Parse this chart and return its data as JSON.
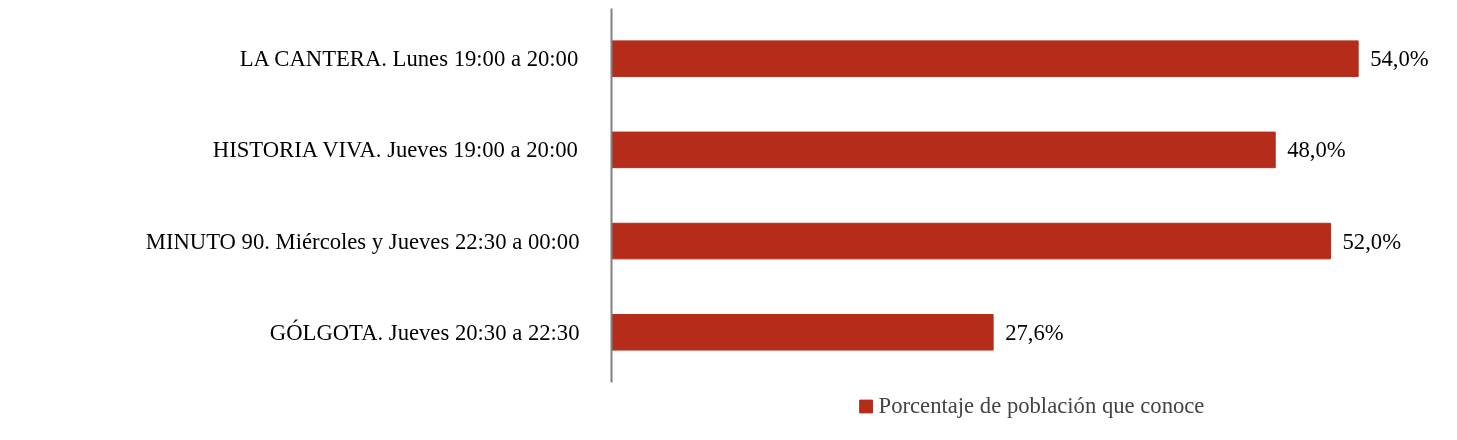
{
  "chart_data": {
    "type": "bar",
    "orientation": "horizontal",
    "categories": [
      "LA CANTERA. Lunes 19:00 a 20:00",
      "HISTORIA VIVA. Jueves 19:00 a 20:00",
      "MINUTO 90. Miércoles y Jueves 22:30 a 00:00",
      "GÓLGOTA. Jueves 20:30 a 22:30"
    ],
    "series": [
      {
        "name": "Porcentaje de población que conoce",
        "color": "#b52d1a",
        "values": [
          54.0,
          48.0,
          52.0,
          27.6
        ],
        "value_labels": [
          "54,0%",
          "48,0%",
          "52,0%",
          "27,6%"
        ]
      }
    ],
    "legend": "bottom"
  }
}
